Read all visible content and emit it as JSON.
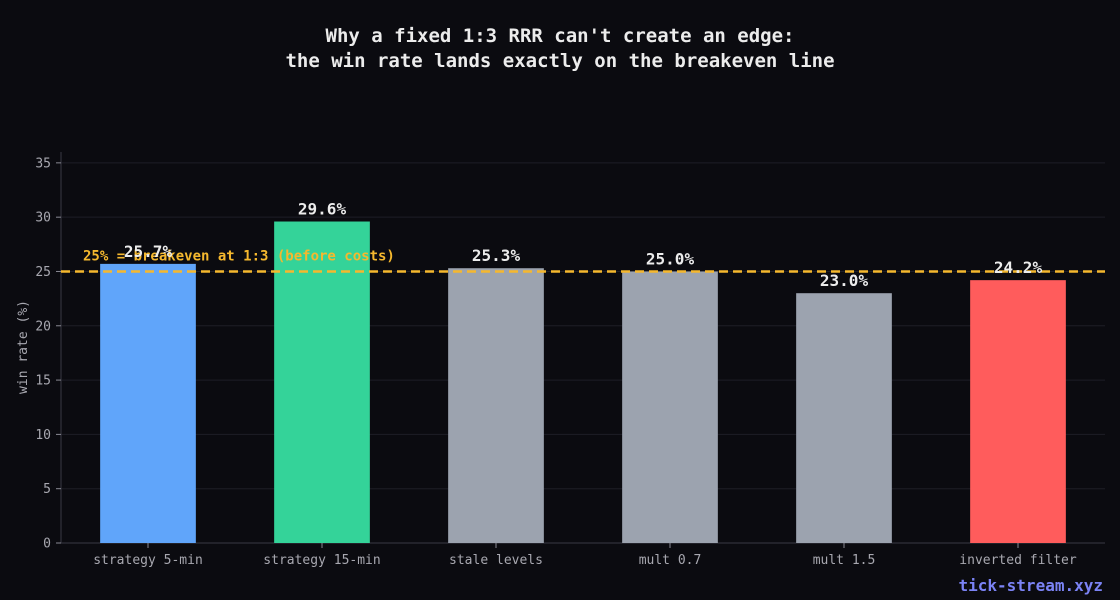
{
  "chart_data": {
    "type": "bar",
    "title_lines": [
      "Why a fixed 1:3 RRR can't create an edge:",
      "the win rate lands exactly on the breakeven line"
    ],
    "xlabel": "",
    "ylabel": "win rate (%)",
    "ylim": [
      0,
      36
    ],
    "yticks": [
      0,
      5,
      10,
      15,
      20,
      25,
      30,
      35
    ],
    "grid": true,
    "categories": [
      "strategy 5-min",
      "strategy 15-min",
      "stale levels",
      "mult 0.7",
      "mult 1.5",
      "inverted filter"
    ],
    "values": [
      25.7,
      29.6,
      25.3,
      25.0,
      23.0,
      24.2
    ],
    "data_labels": [
      "25.7%",
      "29.6%",
      "25.3%",
      "25.0%",
      "23.0%",
      "24.2%"
    ],
    "bar_colors": [
      "#60a5fa",
      "#34d399",
      "#9ca3af",
      "#9ca3af",
      "#9ca3af",
      "#ff5c5c"
    ],
    "reference_line": {
      "value": 25,
      "label": "25% = breakeven at 1:3 (before costs)",
      "color": "#f5b82e",
      "style": "dashed"
    }
  },
  "watermark": {
    "text": "tick-stream.xyz",
    "color": "#7b83f5"
  },
  "colors": {
    "background": "#0b0b10",
    "grid": "#1e1e26",
    "axis": "#3a3a44"
  }
}
